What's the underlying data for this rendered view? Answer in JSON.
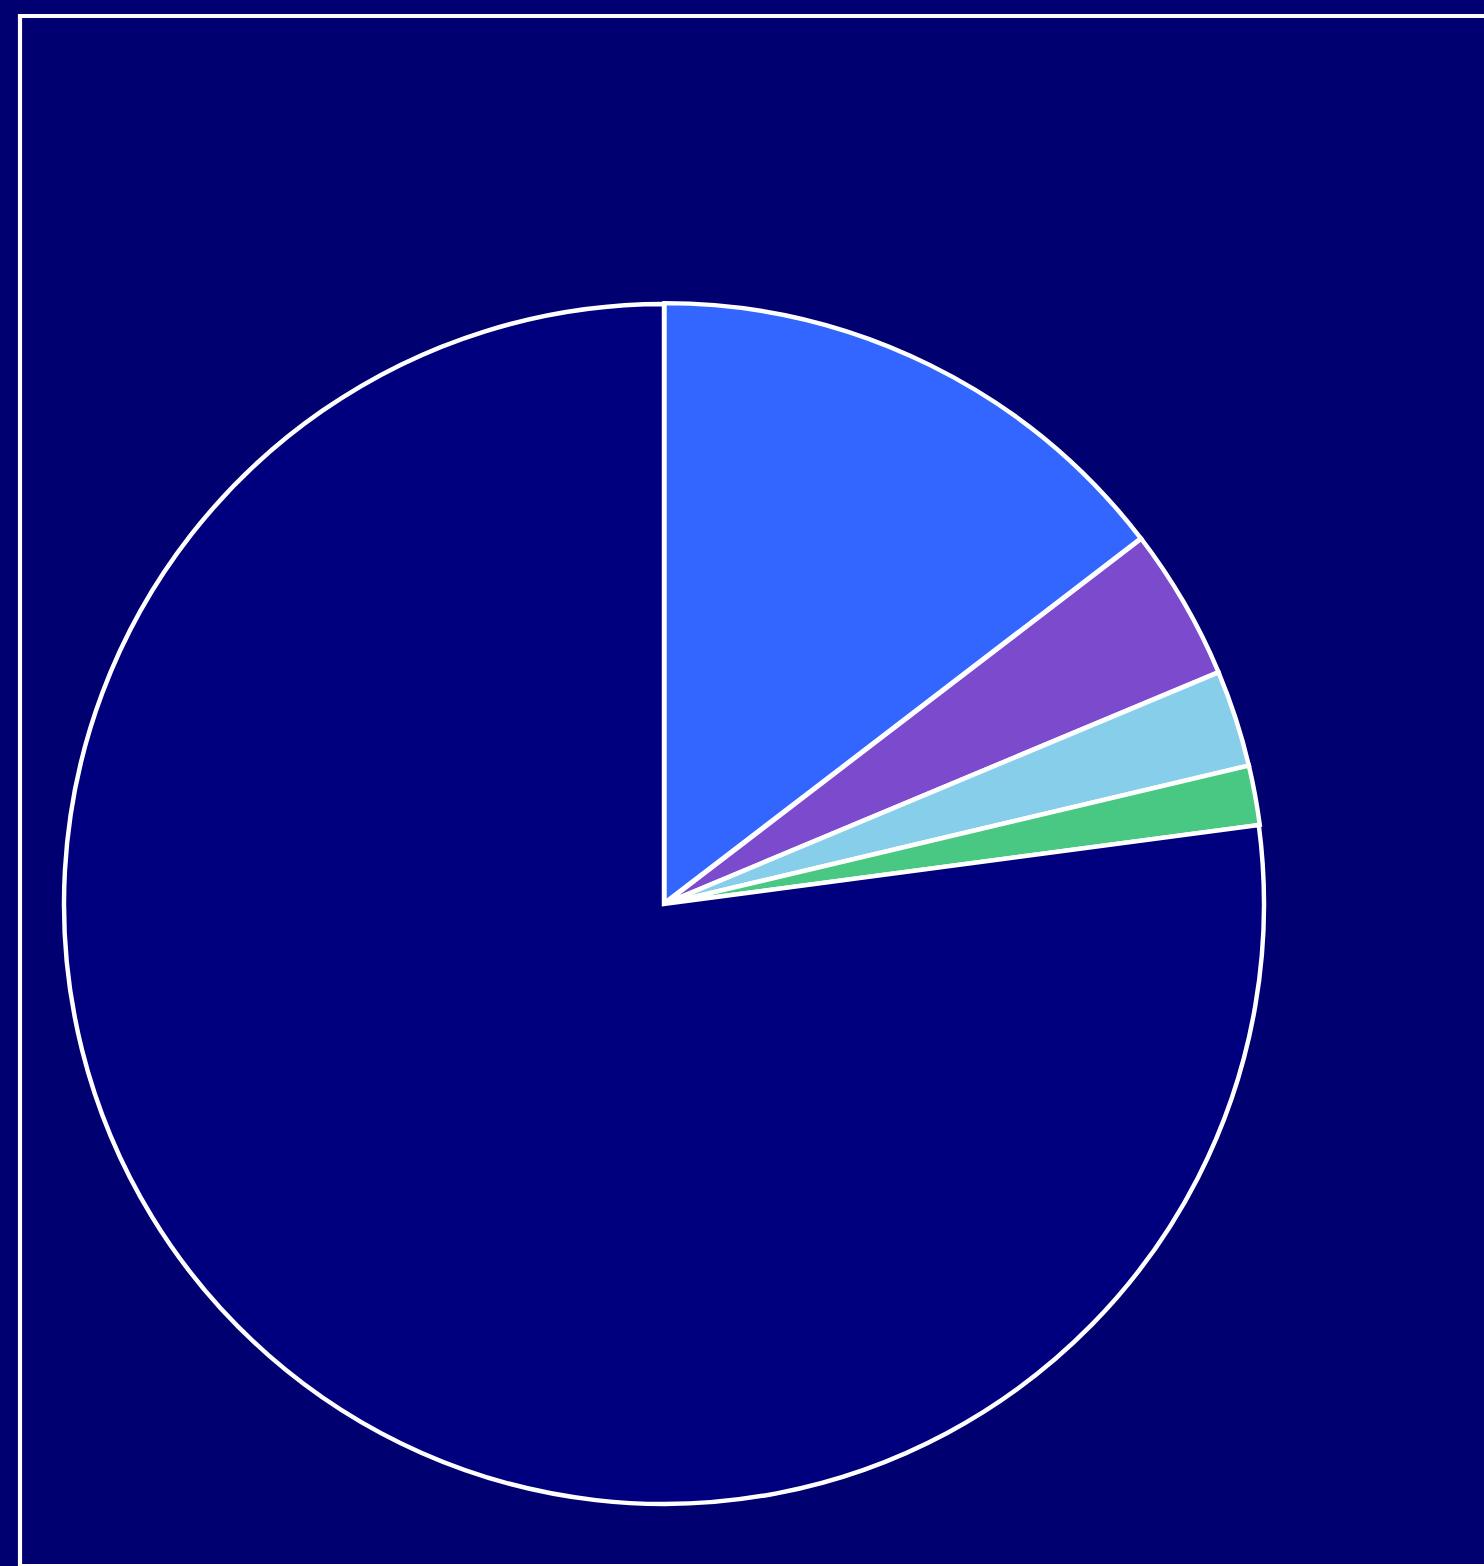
{
  "chart_data": {
    "type": "pie",
    "categories": [
      null,
      null,
      null,
      null,
      null
    ],
    "values": [
      14.6,
      4.1,
      2.6,
      1.6,
      77.1
    ],
    "colors": [
      "#3366ff",
      "#7b4acd",
      "#87ceeb",
      "#48c882",
      "#00007f"
    ]
  }
}
